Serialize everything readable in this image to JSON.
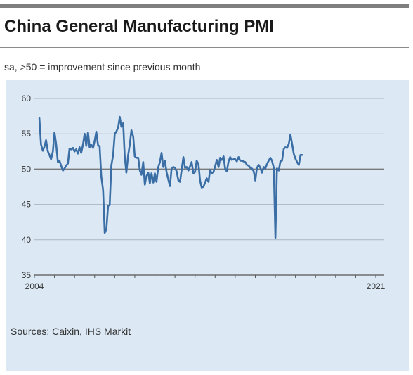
{
  "title": "China General Manufacturing PMI",
  "subtitle": "sa, >50 = improvement since previous month",
  "source": "Sources: Caixin, IHS Markit",
  "chart_data": {
    "type": "line",
    "title": "China General Manufacturing PMI",
    "subtitle": "sa, >50 = improvement since previous month",
    "xlabel": "",
    "ylabel": "",
    "ylim": [
      35,
      60
    ],
    "yticks": [
      "60",
      "55",
      "50",
      "45",
      "40",
      "35"
    ],
    "xlim": [
      2004.0,
      2021.42
    ],
    "xtick_labels": [
      "2004",
      "2021"
    ],
    "grid": "horizontal",
    "reference_line": 50,
    "line_color": "#3a6ea5",
    "series": [
      {
        "name": "",
        "points": [
          [
            2004.25,
            57.2
          ],
          [
            2004.33,
            53.5
          ],
          [
            2004.42,
            52.6
          ],
          [
            2004.5,
            53.2
          ],
          [
            2004.58,
            54.1
          ],
          [
            2004.67,
            52.5
          ],
          [
            2004.75,
            52.0
          ],
          [
            2004.83,
            51.4
          ],
          [
            2004.92,
            52.5
          ],
          [
            2005.0,
            55.2
          ],
          [
            2005.08,
            53.6
          ],
          [
            2005.17,
            51.0
          ],
          [
            2005.25,
            51.2
          ],
          [
            2005.33,
            50.5
          ],
          [
            2005.42,
            49.8
          ],
          [
            2005.5,
            50.1
          ],
          [
            2005.58,
            50.5
          ],
          [
            2005.67,
            50.8
          ],
          [
            2005.75,
            52.9
          ],
          [
            2005.83,
            52.8
          ],
          [
            2005.92,
            53.0
          ],
          [
            2006.0,
            52.5
          ],
          [
            2006.08,
            52.8
          ],
          [
            2006.17,
            52.2
          ],
          [
            2006.25,
            53.1
          ],
          [
            2006.33,
            52.3
          ],
          [
            2006.42,
            53.5
          ],
          [
            2006.5,
            55.0
          ],
          [
            2006.58,
            53.3
          ],
          [
            2006.67,
            55.2
          ],
          [
            2006.75,
            53.1
          ],
          [
            2006.83,
            53.5
          ],
          [
            2006.92,
            53.0
          ],
          [
            2007.0,
            54.0
          ],
          [
            2007.08,
            55.3
          ],
          [
            2007.17,
            53.4
          ],
          [
            2007.25,
            53.2
          ],
          [
            2007.33,
            49.0
          ],
          [
            2007.42,
            47.0
          ],
          [
            2007.5,
            41.0
          ],
          [
            2007.58,
            41.3
          ],
          [
            2007.67,
            44.8
          ],
          [
            2007.75,
            44.9
          ],
          [
            2007.83,
            50.5
          ],
          [
            2007.92,
            52.0
          ],
          [
            2008.0,
            55.0
          ],
          [
            2008.08,
            55.3
          ],
          [
            2008.17,
            55.9
          ],
          [
            2008.25,
            57.4
          ],
          [
            2008.33,
            56.0
          ],
          [
            2008.42,
            56.5
          ],
          [
            2008.5,
            51.8
          ],
          [
            2008.58,
            49.5
          ],
          [
            2008.67,
            52.0
          ],
          [
            2008.75,
            53.5
          ],
          [
            2008.83,
            55.5
          ],
          [
            2008.92,
            54.6
          ],
          [
            2009.0,
            51.8
          ],
          [
            2009.08,
            51.6
          ],
          [
            2009.17,
            51.6
          ],
          [
            2009.25,
            49.8
          ],
          [
            2009.33,
            49.2
          ],
          [
            2009.42,
            51.0
          ],
          [
            2009.5,
            47.8
          ],
          [
            2009.58,
            49.0
          ],
          [
            2009.67,
            49.5
          ],
          [
            2009.75,
            48.0
          ],
          [
            2009.83,
            49.4
          ],
          [
            2009.92,
            48.1
          ],
          [
            2010.0,
            49.4
          ],
          [
            2010.08,
            48.2
          ],
          [
            2010.17,
            50.3
          ],
          [
            2010.25,
            51.0
          ],
          [
            2010.33,
            52.3
          ],
          [
            2010.42,
            50.3
          ],
          [
            2010.5,
            51.2
          ],
          [
            2010.58,
            49.6
          ],
          [
            2010.67,
            48.5
          ],
          [
            2010.75,
            47.6
          ],
          [
            2010.83,
            50.1
          ],
          [
            2010.92,
            50.3
          ],
          [
            2011.0,
            50.2
          ],
          [
            2011.08,
            49.7
          ],
          [
            2011.17,
            48.4
          ],
          [
            2011.25,
            48.2
          ],
          [
            2011.33,
            49.8
          ],
          [
            2011.42,
            51.7
          ],
          [
            2011.5,
            50.2
          ],
          [
            2011.58,
            50.3
          ],
          [
            2011.67,
            49.8
          ],
          [
            2011.75,
            50.4
          ],
          [
            2011.83,
            51.0
          ],
          [
            2011.92,
            49.4
          ],
          [
            2012.0,
            49.6
          ],
          [
            2012.08,
            51.2
          ],
          [
            2012.17,
            50.7
          ],
          [
            2012.25,
            48.4
          ],
          [
            2012.33,
            47.4
          ],
          [
            2012.42,
            47.5
          ],
          [
            2012.5,
            48.1
          ],
          [
            2012.58,
            48.7
          ],
          [
            2012.67,
            48.2
          ],
          [
            2012.75,
            49.9
          ],
          [
            2012.83,
            49.4
          ],
          [
            2012.92,
            49.6
          ],
          [
            2013.0,
            50.4
          ],
          [
            2013.08,
            51.3
          ],
          [
            2013.17,
            50.3
          ],
          [
            2013.25,
            51.6
          ],
          [
            2013.33,
            51.3
          ],
          [
            2013.42,
            51.8
          ],
          [
            2013.5,
            50.0
          ],
          [
            2013.58,
            49.7
          ],
          [
            2013.67,
            51.1
          ],
          [
            2013.75,
            51.7
          ],
          [
            2013.83,
            51.3
          ],
          [
            2013.92,
            51.4
          ],
          [
            2014.0,
            51.4
          ],
          [
            2014.08,
            51.1
          ],
          [
            2014.17,
            51.7
          ],
          [
            2014.25,
            51.2
          ],
          [
            2014.33,
            51.2
          ],
          [
            2014.42,
            51.1
          ],
          [
            2014.5,
            51.0
          ],
          [
            2014.58,
            50.6
          ],
          [
            2014.67,
            50.5
          ],
          [
            2014.75,
            50.2
          ],
          [
            2014.83,
            50.1
          ],
          [
            2014.92,
            49.7
          ],
          [
            2015.0,
            48.4
          ],
          [
            2015.08,
            50.2
          ],
          [
            2015.17,
            50.6
          ],
          [
            2015.25,
            50.2
          ],
          [
            2015.33,
            49.5
          ],
          [
            2015.42,
            50.3
          ],
          [
            2015.5,
            50.1
          ],
          [
            2015.58,
            50.7
          ],
          [
            2015.67,
            51.2
          ],
          [
            2015.75,
            51.6
          ],
          [
            2015.83,
            51.2
          ],
          [
            2015.92,
            50.2
          ],
          [
            2016.0,
            40.3
          ],
          [
            2016.08,
            50.1
          ],
          [
            2016.17,
            49.8
          ],
          [
            2016.25,
            51.1
          ],
          [
            2016.33,
            51.2
          ],
          [
            2016.42,
            52.9
          ],
          [
            2016.5,
            53.1
          ],
          [
            2016.58,
            53.0
          ],
          [
            2016.67,
            53.6
          ],
          [
            2016.75,
            54.9
          ],
          [
            2016.83,
            53.6
          ],
          [
            2016.92,
            52.1
          ],
          [
            2017.0,
            51.5
          ],
          [
            2017.08,
            51.0
          ],
          [
            2017.17,
            50.6
          ],
          [
            2017.25,
            52.0
          ],
          [
            2017.33,
            52.0
          ]
        ]
      }
    ]
  }
}
